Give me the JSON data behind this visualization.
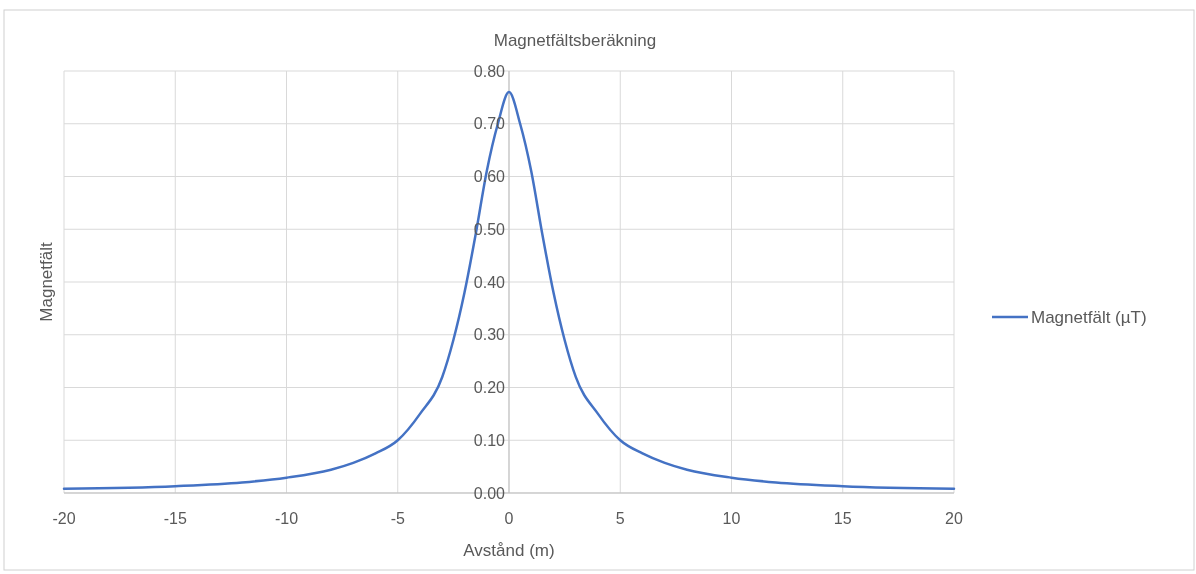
{
  "chart_data": {
    "type": "line",
    "title": "Magnetfältsberäkning",
    "xlabel": "Avstånd (m)",
    "ylabel": "Magnetfält",
    "x": [
      -20,
      -15,
      -12,
      -10,
      -8,
      -7,
      -6,
      -5,
      -4,
      -3,
      -2.5,
      -2,
      -1.5,
      -1,
      -0.5,
      0,
      0.5,
      1,
      1.5,
      2,
      2.5,
      3,
      4,
      5,
      6,
      7,
      8,
      10,
      12,
      15,
      20
    ],
    "series": [
      {
        "name": "Magnetfält (µT)",
        "color": "#4472c4",
        "values": [
          0.008,
          0.013,
          0.02,
          0.029,
          0.044,
          0.057,
          0.075,
          0.1,
          0.15,
          0.22,
          0.29,
          0.38,
          0.49,
          0.61,
          0.7,
          0.76,
          0.7,
          0.61,
          0.49,
          0.38,
          0.29,
          0.22,
          0.15,
          0.1,
          0.075,
          0.057,
          0.044,
          0.029,
          0.02,
          0.013,
          0.008
        ]
      }
    ],
    "xlim": [
      -20,
      20
    ],
    "xticks": [
      -20,
      -15,
      -10,
      -5,
      0,
      5,
      10,
      15,
      20
    ],
    "ylim": [
      0,
      0.8
    ],
    "yticks": [
      {
        "value": 0,
        "label": "0.00"
      },
      {
        "value": 0.1,
        "label": "0.10"
      },
      {
        "value": 0.2,
        "label": "0.20"
      },
      {
        "value": 0.3,
        "label": "0.30"
      },
      {
        "value": 0.4,
        "label": "0.40"
      },
      {
        "value": 0.5,
        "label": "0.50"
      },
      {
        "value": 0.6,
        "label": "0.60"
      },
      {
        "value": 0.7,
        "label": "0.70"
      },
      {
        "value": 0.8,
        "label": "0.80"
      }
    ],
    "grid": true,
    "legend": "right",
    "marker": "none",
    "line_style": "solid"
  }
}
